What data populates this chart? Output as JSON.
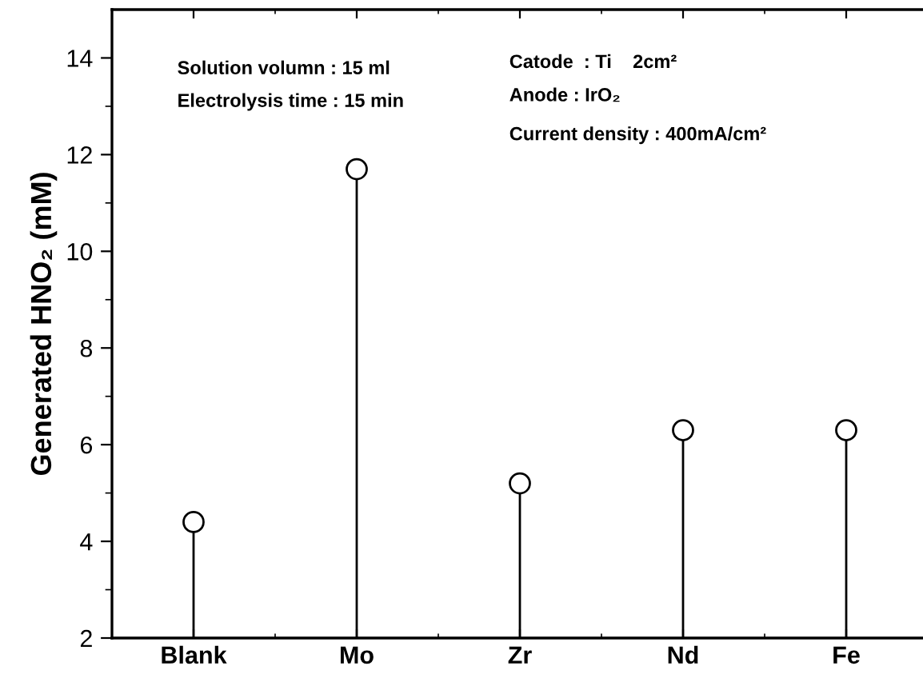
{
  "chart_data": {
    "type": "lollipop",
    "ylabel": "Generated HNO₂ (mM)",
    "categories": [
      "Blank",
      "Mo",
      "Zr",
      "Nd",
      "Fe"
    ],
    "values": [
      4.4,
      11.7,
      5.2,
      6.3,
      6.3
    ],
    "color": "#000000",
    "marker": "circle",
    "ylim": [
      2,
      15
    ],
    "yticks": [
      2,
      4,
      6,
      8,
      10,
      12,
      14
    ],
    "annotations": [
      "Solution volumn : 15 ml",
      "Electrolysis time : 15 min",
      "Catode  : Ti    2cm²",
      "Anode : IrO₂",
      "Current density : 400mA/cm²"
    ]
  }
}
